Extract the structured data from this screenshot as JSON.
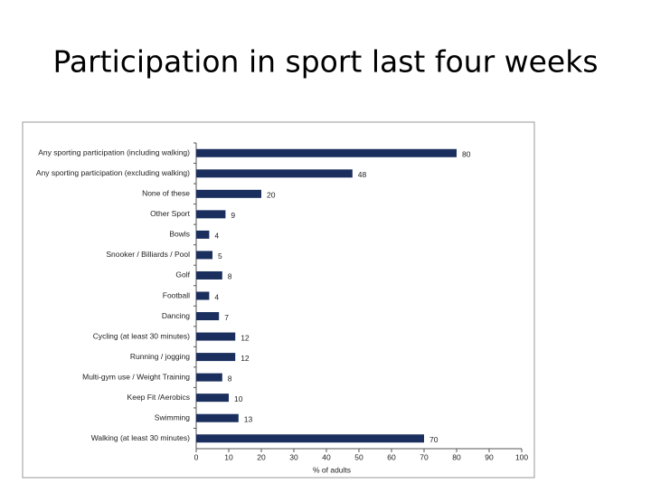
{
  "chart_data": {
    "type": "bar",
    "orientation": "horizontal",
    "title": "Participation in sport last four weeks",
    "xlabel": "% of adults",
    "categories": [
      "Any sporting participation (including walking)",
      "Any sporting participation (excluding walking)",
      "None of these",
      "Other Sport",
      "Bowls",
      "Snooker / Billiards / Pool",
      "Golf",
      "Football",
      "Dancing",
      "Cycling (at least 30 minutes)",
      "Running / jogging",
      "Multi-gym use / Weight Training",
      "Keep Fit /Aerobics",
      "Swimming",
      "Walking (at least 30 minutes)"
    ],
    "values": [
      80,
      48,
      20,
      9,
      4,
      5,
      8,
      4,
      7,
      12,
      12,
      8,
      10,
      13,
      70
    ],
    "color": "#1b2f5e",
    "xlim": [
      0,
      100
    ],
    "xticks": [
      0,
      10,
      20,
      30,
      40,
      50,
      60,
      70,
      80,
      90,
      100
    ],
    "show_value_labels": true
  }
}
